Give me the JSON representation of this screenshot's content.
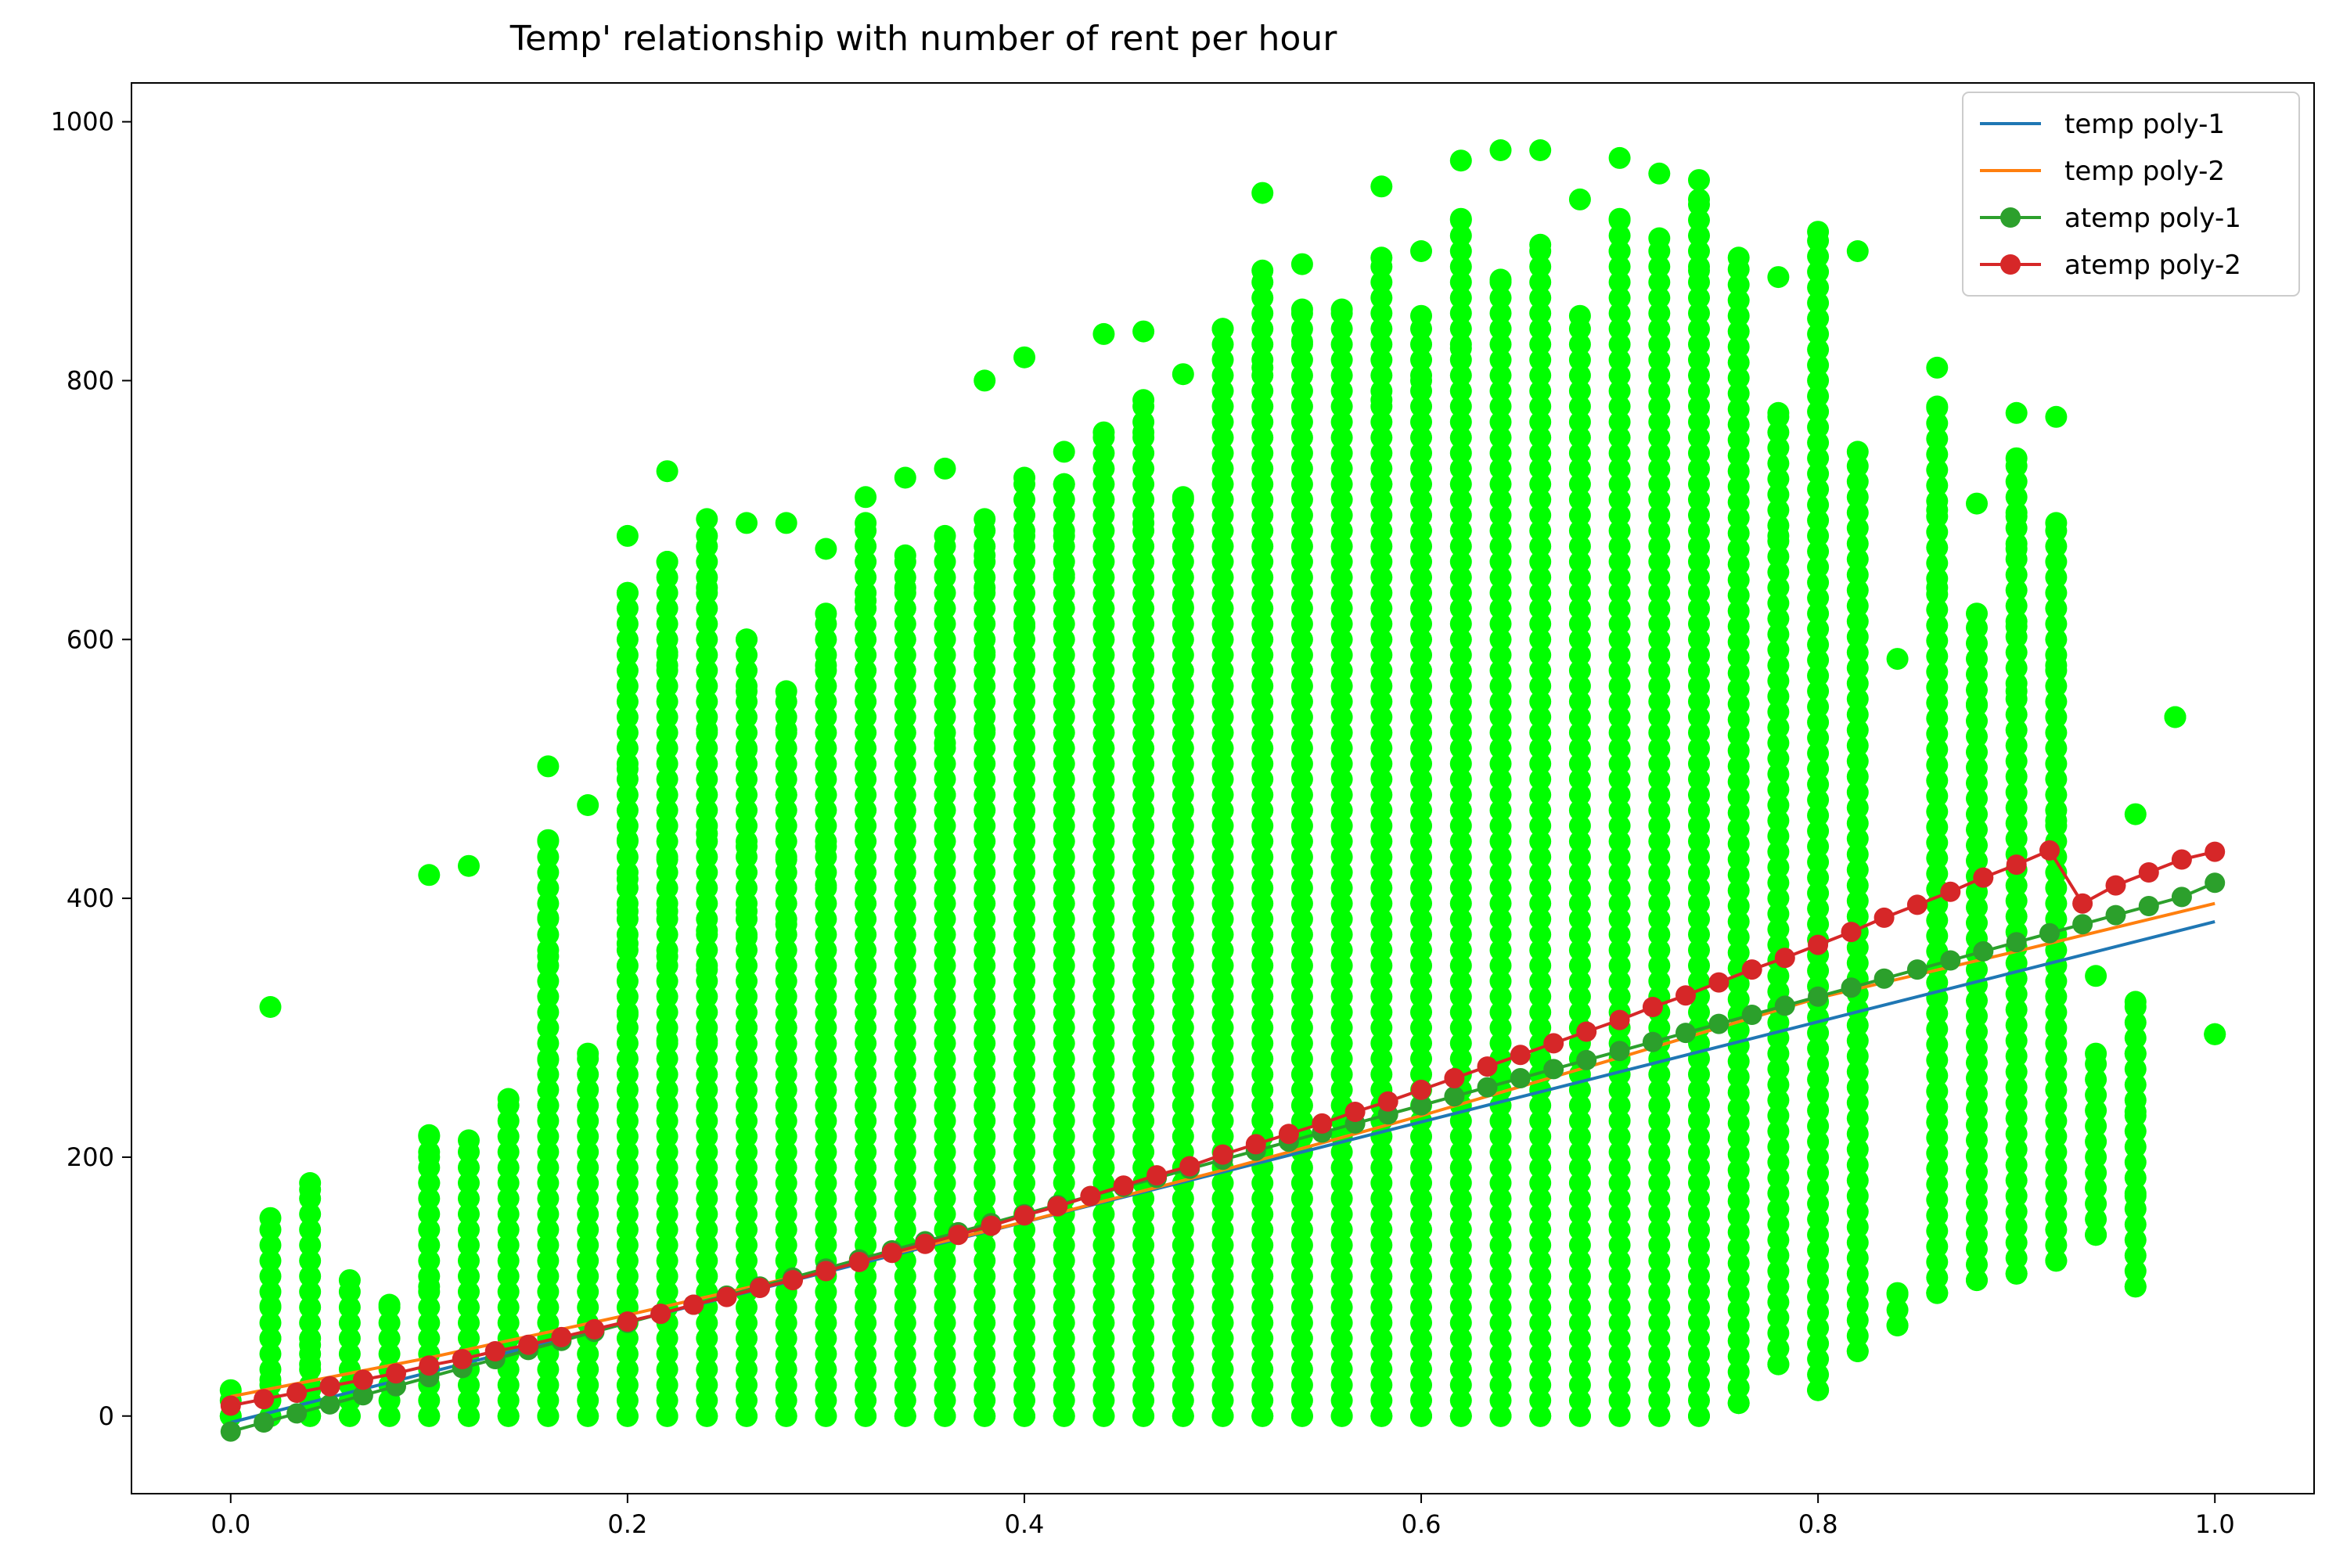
{
  "chart_data": {
    "type": "scatter",
    "title": "Temp' relationship with number of rent per hour",
    "xlabel": "",
    "ylabel": "",
    "xlim": [
      -0.05,
      1.05
    ],
    "ylim": [
      -60,
      1030
    ],
    "x_ticks": [
      "0.0",
      "0.2",
      "0.4",
      "0.6",
      "0.8",
      "1.0"
    ],
    "y_ticks": [
      "0",
      "200",
      "400",
      "600",
      "800",
      "1000"
    ],
    "grid": false,
    "legend_position": "top-right",
    "scatter_color": "#00ff00",
    "scatter_columns": [
      {
        "x": 0.0,
        "y": [
          0,
          20
        ]
      },
      {
        "x": 0.02,
        "y": [
          0,
          28,
          60,
          85,
          153,
          316
        ]
      },
      {
        "x": 0.04,
        "y": [
          0,
          20,
          40,
          55,
          175,
          180
        ]
      },
      {
        "x": 0.06,
        "y": [
          0,
          105
        ]
      },
      {
        "x": 0.08,
        "y": [
          0,
          86
        ]
      },
      {
        "x": 0.1,
        "y": [
          0,
          100,
          180,
          200,
          217,
          418
        ]
      },
      {
        "x": 0.12,
        "y": [
          0,
          213,
          425
        ]
      },
      {
        "x": 0.14,
        "y": [
          0,
          245
        ]
      },
      {
        "x": 0.16,
        "y": [
          0,
          240,
          275,
          355,
          385,
          445,
          502
        ]
      },
      {
        "x": 0.18,
        "y": [
          0,
          280,
          472
        ]
      },
      {
        "x": 0.2,
        "y": [
          0,
          310,
          365,
          390,
          415,
          445,
          500,
          636,
          680
        ]
      },
      {
        "x": 0.22,
        "y": [
          0,
          290,
          355,
          390,
          430,
          580,
          590,
          660,
          730
        ]
      },
      {
        "x": 0.24,
        "y": [
          0,
          290,
          345,
          375,
          450,
          530,
          640,
          680,
          693
        ]
      },
      {
        "x": 0.26,
        "y": [
          0,
          300,
          370,
          390,
          440,
          515,
          560,
          600,
          690
        ]
      },
      {
        "x": 0.28,
        "y": [
          0,
          300,
          380,
          430,
          480,
          530,
          560,
          690
        ]
      },
      {
        "x": 0.3,
        "y": [
          0,
          410,
          440,
          480,
          580,
          620,
          670
        ]
      },
      {
        "x": 0.32,
        "y": [
          0,
          630,
          690,
          710
        ]
      },
      {
        "x": 0.34,
        "y": [
          0,
          640,
          665,
          725
        ]
      },
      {
        "x": 0.36,
        "y": [
          0,
          480,
          520,
          600,
          680,
          732
        ]
      },
      {
        "x": 0.38,
        "y": [
          0,
          530,
          590,
          640,
          665,
          693,
          800
        ]
      },
      {
        "x": 0.4,
        "y": [
          0,
          610,
          680,
          725,
          818
        ]
      },
      {
        "x": 0.42,
        "y": [
          0,
          650,
          680,
          720,
          745
        ]
      },
      {
        "x": 0.44,
        "y": [
          0,
          760,
          836
        ]
      },
      {
        "x": 0.46,
        "y": [
          0,
          690,
          760,
          785,
          838
        ]
      },
      {
        "x": 0.48,
        "y": [
          0,
          625,
          710,
          805
        ]
      },
      {
        "x": 0.5,
        "y": [
          0,
          840
        ]
      },
      {
        "x": 0.52,
        "y": [
          0,
          810,
          885,
          945
        ]
      },
      {
        "x": 0.54,
        "y": [
          0,
          830,
          855,
          890
        ]
      },
      {
        "x": 0.56,
        "y": [
          0,
          855
        ]
      },
      {
        "x": 0.58,
        "y": [
          0,
          720,
          785,
          895,
          950
        ]
      },
      {
        "x": 0.6,
        "y": [
          0,
          800,
          850,
          900
        ]
      },
      {
        "x": 0.62,
        "y": [
          0,
          825,
          925,
          970
        ]
      },
      {
        "x": 0.64,
        "y": [
          0,
          840,
          878,
          978
        ]
      },
      {
        "x": 0.66,
        "y": [
          0,
          905,
          978
        ]
      },
      {
        "x": 0.68,
        "y": [
          0,
          850,
          940
        ]
      },
      {
        "x": 0.7,
        "y": [
          0,
          900,
          925,
          972
        ]
      },
      {
        "x": 0.72,
        "y": [
          0,
          910,
          960
        ]
      },
      {
        "x": 0.74,
        "y": [
          0,
          885,
          940,
          955
        ]
      },
      {
        "x": 0.76,
        "y": [
          10,
          895
        ]
      },
      {
        "x": 0.78,
        "y": [
          40,
          680,
          775,
          880
        ]
      },
      {
        "x": 0.8,
        "y": [
          20,
          915
        ]
      },
      {
        "x": 0.82,
        "y": [
          50,
          745,
          900
        ]
      },
      {
        "x": 0.84,
        "y": [
          70,
          95,
          585
        ]
      },
      {
        "x": 0.86,
        "y": [
          95,
          640,
          700,
          780,
          810
        ]
      },
      {
        "x": 0.88,
        "y": [
          105,
          550,
          620,
          705
        ]
      },
      {
        "x": 0.9,
        "y": [
          110,
          560,
          610,
          670,
          695,
          740,
          775
        ]
      },
      {
        "x": 0.92,
        "y": [
          120,
          460,
          580,
          690,
          772
        ]
      },
      {
        "x": 0.94,
        "y": [
          140,
          280,
          340
        ]
      },
      {
        "x": 0.96,
        "y": [
          100,
          170,
          235,
          280,
          320,
          465
        ]
      },
      {
        "x": 0.98,
        "y": [
          540
        ]
      },
      {
        "x": 1.0,
        "y": [
          295
        ]
      }
    ],
    "series": [
      {
        "name": "temp poly-1",
        "color": "#1f77b4",
        "marker": false,
        "x": [
          0.0,
          1.0
        ],
        "y": [
          -5,
          382
        ]
      },
      {
        "name": "temp poly-2",
        "color": "#ff7f0e",
        "marker": false,
        "x": [
          0.0,
          0.1,
          0.2,
          0.3,
          0.4,
          0.5,
          0.6,
          0.7,
          0.8,
          0.9,
          1.0
        ],
        "y": [
          15,
          45,
          78,
          113,
          150,
          190,
          232,
          277,
          323,
          359,
          396
        ]
      },
      {
        "name": "atemp poly-1",
        "color": "#2ca02c",
        "marker": true,
        "x": [
          0.0,
          0.0167,
          0.0333,
          0.05,
          0.0667,
          0.0833,
          0.1,
          0.1167,
          0.1333,
          0.15,
          0.1667,
          0.1833,
          0.2,
          0.2167,
          0.2333,
          0.25,
          0.2667,
          0.2833,
          0.3,
          0.3167,
          0.3333,
          0.35,
          0.3667,
          0.3833,
          0.4,
          0.4167,
          0.4333,
          0.45,
          0.4667,
          0.4833,
          0.5,
          0.5167,
          0.5333,
          0.55,
          0.5667,
          0.5833,
          0.6,
          0.6167,
          0.6333,
          0.65,
          0.6667,
          0.6833,
          0.7,
          0.7167,
          0.7333,
          0.75,
          0.7667,
          0.7833,
          0.8,
          0.8167,
          0.8333,
          0.85,
          0.8667,
          0.8833,
          0.9,
          0.9167,
          0.9333,
          0.95,
          0.9667,
          0.9833,
          1.0
        ],
        "y": [
          -12,
          -5,
          2,
          9,
          16,
          23,
          30,
          37,
          44,
          51,
          58,
          65,
          72,
          79,
          86,
          93,
          100,
          107,
          114,
          121,
          128,
          135,
          142,
          149,
          156,
          163,
          170,
          177,
          184,
          191,
          198,
          205,
          212,
          219,
          226,
          233,
          240,
          247,
          254,
          261,
          268,
          275,
          282,
          289,
          296,
          303,
          310,
          317,
          324,
          331,
          338,
          345,
          352,
          359,
          366,
          373,
          380,
          387,
          394,
          401,
          412
        ]
      },
      {
        "name": "atemp poly-2",
        "color": "#d62728",
        "marker": true,
        "x": [
          0.0,
          0.0167,
          0.0333,
          0.05,
          0.0667,
          0.0833,
          0.1,
          0.1167,
          0.1333,
          0.15,
          0.1667,
          0.1833,
          0.2,
          0.2167,
          0.2333,
          0.25,
          0.2667,
          0.2833,
          0.3,
          0.3167,
          0.3333,
          0.35,
          0.3667,
          0.3833,
          0.4,
          0.4167,
          0.4333,
          0.45,
          0.4667,
          0.4833,
          0.5,
          0.5167,
          0.5333,
          0.55,
          0.5667,
          0.5833,
          0.6,
          0.6167,
          0.6333,
          0.65,
          0.6667,
          0.6833,
          0.7,
          0.7167,
          0.7333,
          0.75,
          0.7667,
          0.7833,
          0.8,
          0.8167,
          0.8333,
          0.85,
          0.8667,
          0.8833,
          0.9,
          0.9167,
          0.9333,
          0.95,
          0.9667,
          0.9833,
          1.0
        ],
        "y": [
          8,
          13,
          18,
          23,
          28,
          33,
          39,
          44,
          50,
          55,
          61,
          67,
          73,
          79,
          86,
          92,
          99,
          105,
          112,
          119,
          126,
          133,
          140,
          147,
          155,
          162,
          170,
          178,
          186,
          193,
          202,
          210,
          218,
          226,
          235,
          243,
          252,
          261,
          270,
          279,
          288,
          297,
          306,
          316,
          325,
          335,
          345,
          354,
          364,
          374,
          385,
          395,
          405,
          416,
          426,
          437,
          396,
          410,
          420,
          430,
          436
        ]
      }
    ]
  }
}
